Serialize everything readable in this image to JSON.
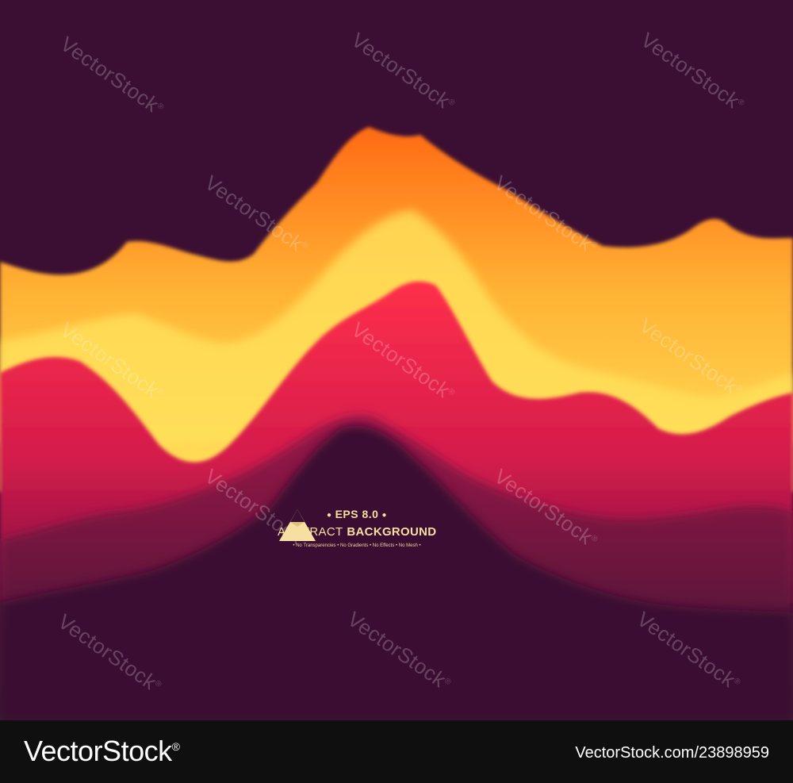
{
  "colors": {
    "background": "#3b0f33",
    "footer": "#0f0f0f",
    "accent_orange": "#ff7a1c",
    "accent_yellow": "#ffd84a",
    "accent_red": "#e8204c",
    "text_cream": "#f6dfa1"
  },
  "watermark": {
    "text": "VectorStock",
    "registered": "®"
  },
  "badge": {
    "icon": "triangle-icon",
    "eps": "EPS 8.0",
    "title_thin": "ABSTRACT",
    "title_bold": "BACKGROUND",
    "features": [
      "No Transparencies",
      "No Gradients",
      "No Effects",
      "No Mesh"
    ]
  },
  "footer": {
    "logo": "VectorStock",
    "registered": "®",
    "id_text": "VectorStock.com/23898959"
  }
}
